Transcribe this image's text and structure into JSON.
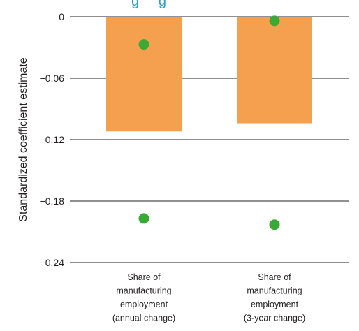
{
  "chart_data": {
    "type": "bar",
    "title": "",
    "title_fragment": "g     g",
    "ylabel": "Standardized coefficient estimate",
    "xlabel": "",
    "ylim": [
      -0.24,
      0
    ],
    "yticks": [
      0,
      -0.06,
      -0.12,
      -0.18,
      -0.24
    ],
    "ytick_labels": [
      "0",
      "−0.06",
      "−0.12",
      "−0.18",
      "−0.24"
    ],
    "grid": true,
    "categories": [
      [
        "Share of",
        "manufacturing",
        "employment",
        "(annual change)"
      ],
      [
        "Share of",
        "manufacturing",
        "employment",
        "(3-year change)"
      ]
    ],
    "bars": [
      {
        "value": -0.112
      },
      {
        "value": -0.104
      }
    ],
    "points": [
      {
        "category_index": 0,
        "values": [
          -0.027,
          -0.197
        ]
      },
      {
        "category_index": 1,
        "values": [
          -0.004,
          -0.203
        ]
      }
    ],
    "colors": {
      "bar": "#f5a04e",
      "point": "#3aa935",
      "grid": "#231f20",
      "title": "#2a9fd6"
    }
  }
}
